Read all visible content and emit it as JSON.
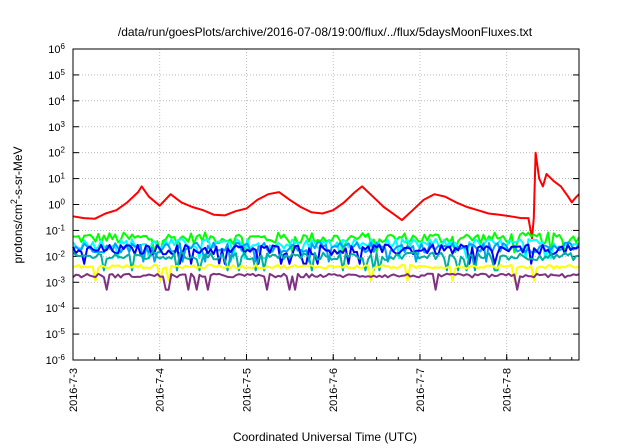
{
  "chart_data": {
    "type": "line",
    "title": "/data/run/goesPlots/archive/2016-07-08/19:00/flux/../flux/5daysMoonFluxes.txt",
    "xlabel": "Coordinated Universal Time (UTC)",
    "ylabel": {
      "prefix": "protons/cm",
      "sup": "2",
      "suffix": "-s-sr-MeV"
    },
    "y_scale": "log",
    "ylim": [
      1e-06,
      1000000.0
    ],
    "y_ticks": [
      {
        "exp": -6,
        "base": "10",
        "sup": "-6"
      },
      {
        "exp": -5,
        "base": "10",
        "sup": "-5"
      },
      {
        "exp": -4,
        "base": "10",
        "sup": "-4"
      },
      {
        "exp": -3,
        "base": "10",
        "sup": "-3"
      },
      {
        "exp": -2,
        "base": "10",
        "sup": "-2"
      },
      {
        "exp": -1,
        "base": "10",
        "sup": "-1"
      },
      {
        "exp": 0,
        "base": "10",
        "sup": "0"
      },
      {
        "exp": 1,
        "base": "10",
        "sup": "1"
      },
      {
        "exp": 2,
        "base": "10",
        "sup": "2"
      },
      {
        "exp": 3,
        "base": "10",
        "sup": "3"
      },
      {
        "exp": 4,
        "base": "10",
        "sup": "4"
      },
      {
        "exp": 5,
        "base": "10",
        "sup": "5"
      },
      {
        "exp": 6,
        "base": "10",
        "sup": "6"
      }
    ],
    "xlim": [
      "2016-07-03T00:00",
      "2016-07-08T20:00"
    ],
    "x_ticks": [
      {
        "date": "2016-07-03T00:00",
        "label": "2016-7-3"
      },
      {
        "date": "2016-07-04T00:00",
        "label": "2016-7-4"
      },
      {
        "date": "2016-07-05T00:00",
        "label": "2016-7-5"
      },
      {
        "date": "2016-07-06T00:00",
        "label": "2016-7-6"
      },
      {
        "date": "2016-07-07T00:00",
        "label": "2016-7-7"
      },
      {
        "date": "2016-07-08T00:00",
        "label": "2016-7-8"
      }
    ],
    "grid": true,
    "series": [
      {
        "color": "#ff0000",
        "values": [
          [
            "2016-07-03T00:00",
            0.35
          ],
          [
            "2016-07-03T03:00",
            0.3
          ],
          [
            "2016-07-03T06:00",
            0.28
          ],
          [
            "2016-07-03T09:00",
            0.45
          ],
          [
            "2016-07-03T12:00",
            0.6
          ],
          [
            "2016-07-03T15:00",
            1.2
          ],
          [
            "2016-07-03T18:00",
            3.0
          ],
          [
            "2016-07-03T19:00",
            5.0
          ],
          [
            "2016-07-03T21:00",
            2.0
          ],
          [
            "2016-07-04T00:00",
            0.9
          ],
          [
            "2016-07-04T03:00",
            2.5
          ],
          [
            "2016-07-04T06:00",
            1.2
          ],
          [
            "2016-07-04T09:00",
            0.8
          ],
          [
            "2016-07-04T12:00",
            0.6
          ],
          [
            "2016-07-04T15:00",
            0.4
          ],
          [
            "2016-07-04T18:00",
            0.38
          ],
          [
            "2016-07-04T21:00",
            0.55
          ],
          [
            "2016-07-05T00:00",
            0.7
          ],
          [
            "2016-07-05T03:00",
            1.5
          ],
          [
            "2016-07-05T06:00",
            2.5
          ],
          [
            "2016-07-05T09:00",
            3.0
          ],
          [
            "2016-07-05T12:00",
            1.5
          ],
          [
            "2016-07-05T15:00",
            0.8
          ],
          [
            "2016-07-05T18:00",
            0.5
          ],
          [
            "2016-07-05T21:00",
            0.45
          ],
          [
            "2016-07-06T00:00",
            0.6
          ],
          [
            "2016-07-06T03:00",
            1.2
          ],
          [
            "2016-07-06T06:00",
            3.0
          ],
          [
            "2016-07-06T08:00",
            5.0
          ],
          [
            "2016-07-06T11:00",
            2.0
          ],
          [
            "2016-07-06T14:00",
            0.8
          ],
          [
            "2016-07-06T17:00",
            0.4
          ],
          [
            "2016-07-06T19:00",
            0.25
          ],
          [
            "2016-07-06T22:00",
            0.6
          ],
          [
            "2016-07-07T01:00",
            1.5
          ],
          [
            "2016-07-07T04:00",
            2.5
          ],
          [
            "2016-07-07T07:00",
            2.0
          ],
          [
            "2016-07-07T10:00",
            1.2
          ],
          [
            "2016-07-07T13:00",
            0.8
          ],
          [
            "2016-07-07T16:00",
            0.6
          ],
          [
            "2016-07-07T19:00",
            0.45
          ],
          [
            "2016-07-07T22:00",
            0.4
          ],
          [
            "2016-07-08T01:00",
            0.35
          ],
          [
            "2016-07-08T04:00",
            0.3
          ],
          [
            "2016-07-08T06:00",
            0.3
          ],
          [
            "2016-07-08T07:00",
            0.05
          ],
          [
            "2016-07-08T07:30",
            0.3
          ],
          [
            "2016-07-08T08:00",
            100.0
          ],
          [
            "2016-07-08T09:00",
            10.0
          ],
          [
            "2016-07-08T10:00",
            5.0
          ],
          [
            "2016-07-08T11:00",
            15.0
          ],
          [
            "2016-07-08T13:00",
            8.0
          ],
          [
            "2016-07-08T15:00",
            5.0
          ],
          [
            "2016-07-08T17:00",
            2.0
          ],
          [
            "2016-07-08T18:00",
            1.2
          ],
          [
            "2016-07-08T19:00",
            1.8
          ],
          [
            "2016-07-08T20:00",
            2.5
          ]
        ]
      },
      {
        "color": "#00ff00",
        "base": 0.05,
        "spread": 0.45
      },
      {
        "color": "#00ffff",
        "base": 0.03,
        "spread": 0.4
      },
      {
        "color": "#00a0ff",
        "base": 0.022,
        "spread": 0.4
      },
      {
        "color": "#0000ff",
        "base": 0.018,
        "spread": 0.4
      },
      {
        "color": "#00b0a0",
        "base": 0.01,
        "spread": 0.3
      },
      {
        "color": "#ffff00",
        "base": 0.004,
        "spread": 0.15
      },
      {
        "color": "#803080",
        "base": 0.0018,
        "spread": 0.15
      }
    ]
  }
}
